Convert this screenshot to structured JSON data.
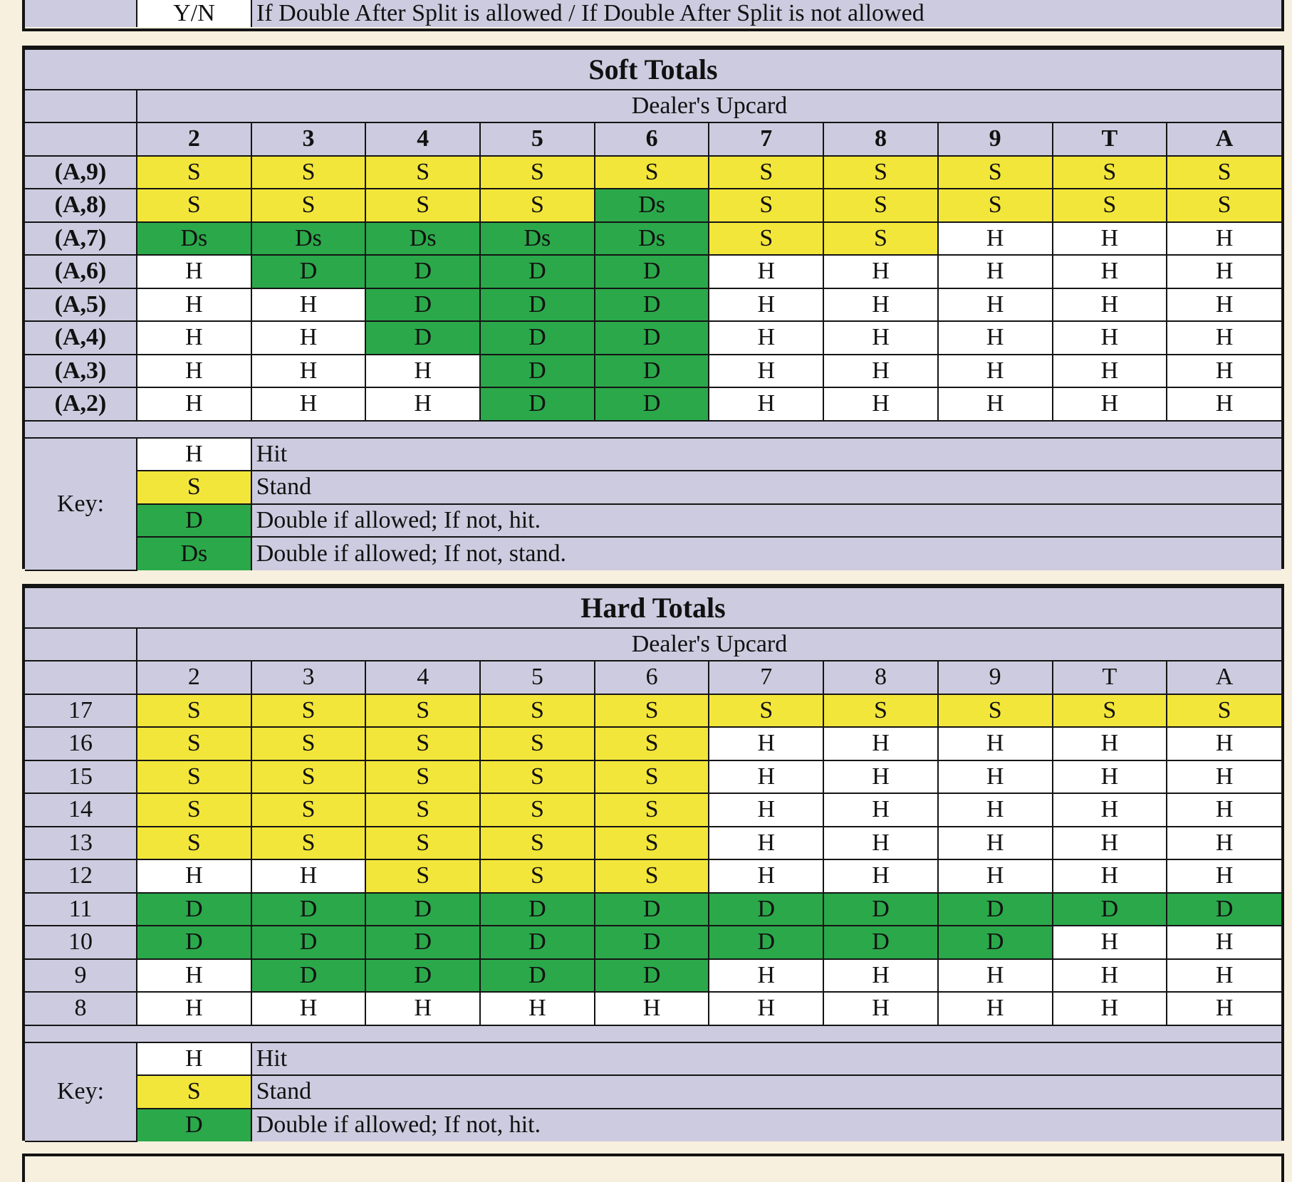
{
  "top_legend": {
    "code": "Y/N",
    "text": "If Double After Split is allowed / If Double After Split is not allowed"
  },
  "soft": {
    "title": "Soft Totals",
    "dealer_label": "Dealer's Upcard",
    "upcards": [
      "2",
      "3",
      "4",
      "5",
      "6",
      "7",
      "8",
      "9",
      "T",
      "A"
    ],
    "rows": [
      {
        "label": "(A,9)",
        "cells": [
          "S",
          "S",
          "S",
          "S",
          "S",
          "S",
          "S",
          "S",
          "S",
          "S"
        ]
      },
      {
        "label": "(A,8)",
        "cells": [
          "S",
          "S",
          "S",
          "S",
          "Ds",
          "S",
          "S",
          "S",
          "S",
          "S"
        ]
      },
      {
        "label": "(A,7)",
        "cells": [
          "Ds",
          "Ds",
          "Ds",
          "Ds",
          "Ds",
          "S",
          "S",
          "H",
          "H",
          "H"
        ]
      },
      {
        "label": "(A,6)",
        "cells": [
          "H",
          "D",
          "D",
          "D",
          "D",
          "H",
          "H",
          "H",
          "H",
          "H"
        ]
      },
      {
        "label": "(A,5)",
        "cells": [
          "H",
          "H",
          "D",
          "D",
          "D",
          "H",
          "H",
          "H",
          "H",
          "H"
        ]
      },
      {
        "label": "(A,4)",
        "cells": [
          "H",
          "H",
          "D",
          "D",
          "D",
          "H",
          "H",
          "H",
          "H",
          "H"
        ]
      },
      {
        "label": "(A,3)",
        "cells": [
          "H",
          "H",
          "H",
          "D",
          "D",
          "H",
          "H",
          "H",
          "H",
          "H"
        ]
      },
      {
        "label": "(A,2)",
        "cells": [
          "H",
          "H",
          "H",
          "D",
          "D",
          "H",
          "H",
          "H",
          "H",
          "H"
        ]
      }
    ],
    "key_label": "Key:",
    "key": [
      {
        "code": "H",
        "text": "Hit"
      },
      {
        "code": "S",
        "text": "Stand"
      },
      {
        "code": "D",
        "text": "Double if allowed; If not, hit."
      },
      {
        "code": "Ds",
        "text": "Double if allowed; If not, stand."
      }
    ]
  },
  "hard": {
    "title": "Hard Totals",
    "dealer_label": "Dealer's Upcard",
    "upcards": [
      "2",
      "3",
      "4",
      "5",
      "6",
      "7",
      "8",
      "9",
      "T",
      "A"
    ],
    "rows": [
      {
        "label": "17",
        "cells": [
          "S",
          "S",
          "S",
          "S",
          "S",
          "S",
          "S",
          "S",
          "S",
          "S"
        ]
      },
      {
        "label": "16",
        "cells": [
          "S",
          "S",
          "S",
          "S",
          "S",
          "H",
          "H",
          "H",
          "H",
          "H"
        ]
      },
      {
        "label": "15",
        "cells": [
          "S",
          "S",
          "S",
          "S",
          "S",
          "H",
          "H",
          "H",
          "H",
          "H"
        ]
      },
      {
        "label": "14",
        "cells": [
          "S",
          "S",
          "S",
          "S",
          "S",
          "H",
          "H",
          "H",
          "H",
          "H"
        ]
      },
      {
        "label": "13",
        "cells": [
          "S",
          "S",
          "S",
          "S",
          "S",
          "H",
          "H",
          "H",
          "H",
          "H"
        ]
      },
      {
        "label": "12",
        "cells": [
          "H",
          "H",
          "S",
          "S",
          "S",
          "H",
          "H",
          "H",
          "H",
          "H"
        ]
      },
      {
        "label": "11",
        "cells": [
          "D",
          "D",
          "D",
          "D",
          "D",
          "D",
          "D",
          "D",
          "D",
          "D"
        ]
      },
      {
        "label": "10",
        "cells": [
          "D",
          "D",
          "D",
          "D",
          "D",
          "D",
          "D",
          "D",
          "H",
          "H"
        ]
      },
      {
        "label": "9",
        "cells": [
          "H",
          "D",
          "D",
          "D",
          "D",
          "H",
          "H",
          "H",
          "H",
          "H"
        ]
      },
      {
        "label": "8",
        "cells": [
          "H",
          "H",
          "H",
          "H",
          "H",
          "H",
          "H",
          "H",
          "H",
          "H"
        ]
      }
    ],
    "key_label": "Key:",
    "key": [
      {
        "code": "H",
        "text": "Hit"
      },
      {
        "code": "S",
        "text": "Stand"
      },
      {
        "code": "D",
        "text": "Double if allowed; If not, hit."
      }
    ]
  }
}
